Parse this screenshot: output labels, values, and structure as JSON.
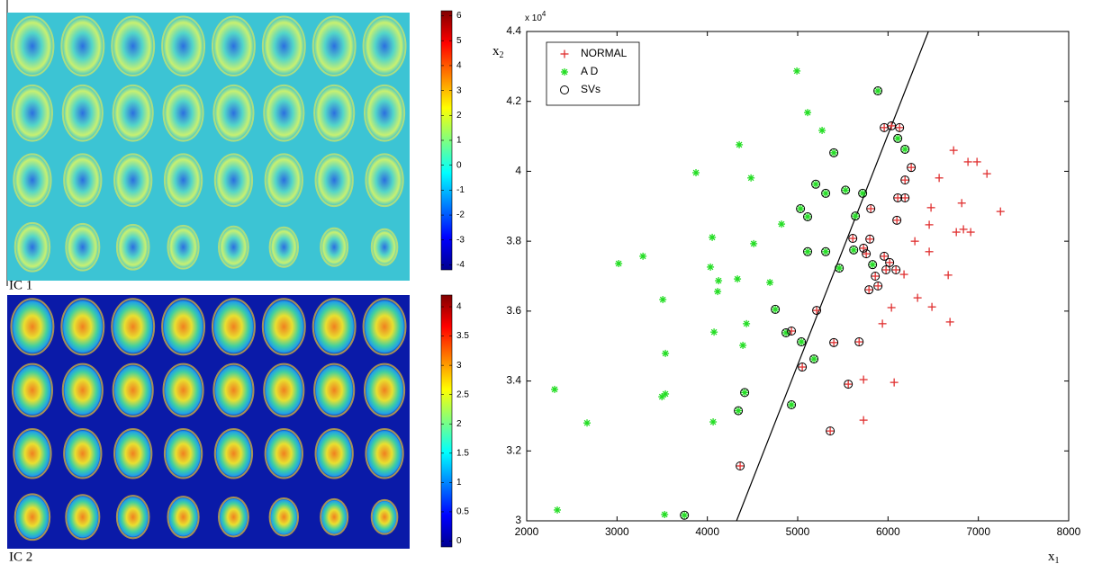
{
  "chart_data": [
    {
      "type": "image",
      "label": "IC 1",
      "background": "#3cc4d4",
      "clim": [
        -4.2,
        6.2
      ],
      "cticks": [
        6,
        5,
        4,
        3,
        2,
        1,
        0,
        -1,
        -2,
        -3,
        -4
      ]
    },
    {
      "type": "image",
      "label": "IC 2",
      "background": "#0a1aa8",
      "clim": [
        -0.1,
        4.2
      ],
      "cticks": [
        4,
        3.5,
        3,
        2.5,
        2,
        1.5,
        1,
        0.5,
        0
      ]
    },
    {
      "type": "scatter",
      "xlabel": {
        "text": "x",
        "subscript": "1"
      },
      "ylabel": {
        "text": "x",
        "subscript": "2"
      },
      "y_multiplier": {
        "text": "x 10",
        "superscript": "4"
      },
      "xlim": [
        2000,
        8000
      ],
      "xticks": [
        2000,
        3000,
        4000,
        5000,
        6000,
        7000,
        8000
      ],
      "ylim": [
        3,
        4.4
      ],
      "yticks": [
        3,
        3.2,
        3.4,
        3.6,
        3.8,
        4,
        4.2,
        4.4
      ],
      "legend": "top-left",
      "decision_line": {
        "x": [
          4323,
          6447
        ],
        "y": [
          3,
          4.4
        ],
        "color": "#000000"
      },
      "series": [
        {
          "name": "NORMAL",
          "marker": "plus",
          "color": "#e03030",
          "x": [
            6726,
            6885,
            6985,
            7095,
            6566,
            6816,
            6476,
            7245,
            6456,
            6756,
            6835,
            6915,
            6297,
            6456,
            6177,
            6666,
            6327,
            6486,
            6038,
            6686,
            5938,
            5729,
            6068,
            5729,
            6038,
            6128,
            5958,
            6257,
            6188,
            6108,
            6188,
            5809,
            6098,
            5610,
            5799,
            5729,
            5759,
            5958,
            6018,
            6088,
            5978,
            5859,
            5789,
            5889,
            5210,
            4931,
            5680,
            5400,
            5051,
            5560,
            5360,
            4363
          ],
          "y": [
            4.06,
            4.027,
            4.027,
            3.993,
            3.981,
            3.909,
            3.896,
            3.885,
            3.847,
            3.826,
            3.834,
            3.826,
            3.8,
            3.77,
            3.705,
            3.703,
            3.638,
            3.612,
            3.61,
            3.569,
            3.564,
            3.404,
            3.396,
            3.288,
            4.13,
            4.125,
            4.125,
            4.011,
            3.975,
            3.924,
            3.924,
            3.893,
            3.86,
            3.808,
            3.806,
            3.78,
            3.764,
            3.757,
            3.739,
            3.718,
            3.718,
            3.7,
            3.661,
            3.672,
            3.602,
            3.543,
            3.512,
            3.51,
            3.44,
            3.391,
            3.257,
            3.157
          ]
        },
        {
          "name": "A D",
          "marker": "star",
          "color": "#22dd22",
          "x": [
            4991,
            5110,
            5270,
            3874,
            4483,
            4353,
            4821,
            4513,
            4054,
            4034,
            4124,
            4114,
            4692,
            4333,
            3018,
            3287,
            3507,
            4433,
            4074,
            4393,
            3536,
            3536,
            3497,
            4064,
            2668,
            2309,
            2339,
            3527,
            5888,
            5400,
            5200,
            5310,
            5031,
            5110,
            5530,
            5719,
            5639,
            6108,
            6188,
            5110,
            5310,
            5460,
            5620,
            5829,
            4752,
            4871,
            5041,
            5180,
            4413,
            4343,
            4931,
            3746
          ],
          "y": [
            4.287,
            4.168,
            4.117,
            3.996,
            3.981,
            4.076,
            3.849,
            3.793,
            3.811,
            3.726,
            3.687,
            3.656,
            3.682,
            3.692,
            3.736,
            3.757,
            3.633,
            3.564,
            3.54,
            3.502,
            3.479,
            3.363,
            3.355,
            3.283,
            3.28,
            3.376,
            3.031,
            3.018,
            4.23,
            4.053,
            3.963,
            3.937,
            3.893,
            3.87,
            3.946,
            3.937,
            3.872,
            4.094,
            4.063,
            3.77,
            3.77,
            3.723,
            3.775,
            3.733,
            3.605,
            3.538,
            3.512,
            3.463,
            3.367,
            3.315,
            3.332,
            3.016
          ]
        },
        {
          "name": "SVs",
          "marker": "circle",
          "color": "#000000",
          "x": [
            6038,
            6128,
            5958,
            6257,
            6188,
            6108,
            6188,
            5809,
            6098,
            5610,
            5799,
            5729,
            5759,
            5958,
            6018,
            6088,
            5978,
            5859,
            5789,
            5889,
            5210,
            4931,
            5680,
            5400,
            5051,
            5560,
            5360,
            4363,
            5888,
            5400,
            5200,
            5310,
            5031,
            5110,
            5530,
            5719,
            5639,
            6108,
            6188,
            5110,
            5310,
            5460,
            5620,
            5829,
            4752,
            4871,
            5041,
            5180,
            4413,
            4343,
            4931,
            3746
          ],
          "y": [
            4.13,
            4.125,
            4.125,
            4.011,
            3.975,
            3.924,
            3.924,
            3.893,
            3.86,
            3.808,
            3.806,
            3.78,
            3.764,
            3.757,
            3.739,
            3.718,
            3.718,
            3.7,
            3.661,
            3.672,
            3.602,
            3.543,
            3.512,
            3.51,
            3.44,
            3.391,
            3.257,
            3.157,
            4.23,
            4.053,
            3.963,
            3.937,
            3.893,
            3.87,
            3.946,
            3.937,
            3.872,
            4.094,
            4.063,
            3.77,
            3.77,
            3.723,
            3.775,
            3.733,
            3.605,
            3.538,
            3.512,
            3.463,
            3.367,
            3.315,
            3.332,
            3.016
          ]
        }
      ]
    }
  ]
}
